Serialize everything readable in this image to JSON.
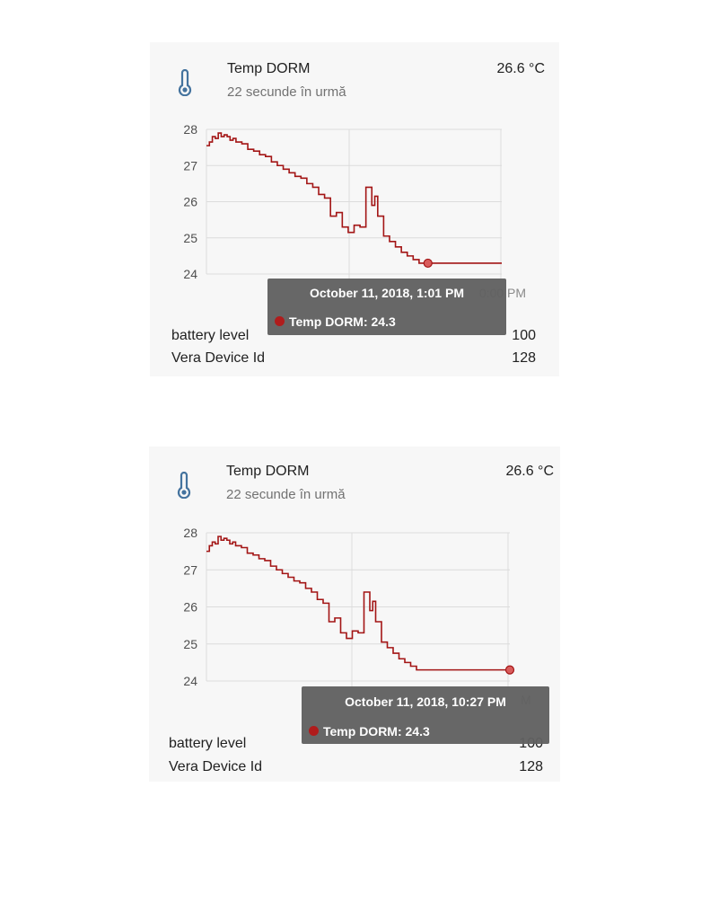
{
  "colors": {
    "series": "#a31515",
    "grid": "#dcdcdc",
    "icon": "#44739e",
    "tooltip_bg": "#616161"
  },
  "cards": [
    {
      "title": "Temp DORM",
      "subtitle": "22 secunde în urmă",
      "state": "26.6 °C",
      "icon": "thermometer-icon",
      "axis_label_hidden": "0:00 PM",
      "tooltip": {
        "date": "October 11, 2018, 1:01 PM",
        "series": "Temp DORM: 24.3"
      },
      "attributes": [
        {
          "name": "battery level",
          "value": "100"
        },
        {
          "name": "Vera Device Id",
          "value": "128"
        }
      ]
    },
    {
      "title": "Temp DORM",
      "subtitle": "22 secunde în urmă",
      "state": "26.6 °C",
      "icon": "thermometer-icon",
      "axis_label_hidden": "M",
      "tooltip": {
        "date": "October 11, 2018, 10:27 PM",
        "series": "Temp DORM: 24.3"
      },
      "attributes": [
        {
          "name": "battery level",
          "value": "100"
        },
        {
          "name": "Vera Device Id",
          "value": "128"
        }
      ]
    }
  ],
  "chart_data": [
    {
      "type": "line",
      "series": [
        {
          "name": "Temp DORM",
          "x": [
            0,
            1,
            2,
            3,
            4,
            5,
            6,
            7,
            8,
            9,
            10,
            12,
            14,
            16,
            18,
            20,
            22,
            24,
            26,
            28,
            30,
            32,
            34,
            36,
            38,
            40,
            42,
            44,
            46,
            48,
            50,
            52,
            54,
            56,
            57,
            58,
            60,
            62,
            64,
            66,
            68,
            70,
            72,
            74,
            75,
            76,
            77,
            78,
            80,
            81,
            82,
            84,
            86,
            88,
            90,
            100
          ],
          "values": [
            27.55,
            27.65,
            27.8,
            27.75,
            27.9,
            27.8,
            27.85,
            27.8,
            27.7,
            27.75,
            27.65,
            27.6,
            27.45,
            27.4,
            27.3,
            27.25,
            27.1,
            27.0,
            26.9,
            26.8,
            26.7,
            26.65,
            26.5,
            26.4,
            26.2,
            26.1,
            25.6,
            25.7,
            25.3,
            25.15,
            25.35,
            25.3,
            26.4,
            25.9,
            26.15,
            25.6,
            25.05,
            24.9,
            24.75,
            24.6,
            24.5,
            24.4,
            24.3,
            24.3,
            24.3,
            24.3,
            24.3,
            24.3,
            24.3,
            24.3,
            24.3,
            24.3,
            24.3,
            24.3,
            24.3,
            24.3
          ]
        }
      ],
      "ylim": [
        24,
        28
      ],
      "yticks": [
        24,
        25,
        26,
        27,
        28
      ],
      "xlim": [
        0,
        100
      ],
      "grid": true,
      "highlight_index": 44
    },
    {
      "type": "line",
      "series": [
        {
          "name": "Temp DORM",
          "x": [
            0,
            1,
            2,
            3,
            4,
            5,
            6,
            7,
            8,
            9,
            10,
            12,
            14,
            16,
            18,
            20,
            22,
            24,
            26,
            28,
            30,
            32,
            34,
            36,
            38,
            40,
            42,
            44,
            46,
            48,
            50,
            52,
            54,
            56,
            57,
            58,
            60,
            62,
            64,
            66,
            68,
            70,
            72,
            74,
            76,
            78,
            80,
            84,
            88,
            92,
            96,
            100,
            104
          ],
          "values": [
            27.5,
            27.65,
            27.75,
            27.7,
            27.9,
            27.8,
            27.85,
            27.8,
            27.7,
            27.75,
            27.65,
            27.6,
            27.45,
            27.4,
            27.3,
            27.25,
            27.1,
            27.0,
            26.9,
            26.8,
            26.7,
            26.65,
            26.5,
            26.4,
            26.2,
            26.1,
            25.6,
            25.7,
            25.3,
            25.15,
            25.35,
            25.3,
            26.4,
            25.9,
            26.15,
            25.6,
            25.05,
            24.9,
            24.75,
            24.6,
            24.5,
            24.4,
            24.3,
            24.3,
            24.3,
            24.3,
            24.3,
            24.3,
            24.3,
            24.3,
            24.3,
            24.3,
            24.3
          ]
        }
      ],
      "ylim": [
        24,
        28
      ],
      "yticks": [
        24,
        25,
        26,
        27,
        28
      ],
      "xlim": [
        0,
        104
      ],
      "grid": true,
      "highlight_index": 52
    }
  ]
}
